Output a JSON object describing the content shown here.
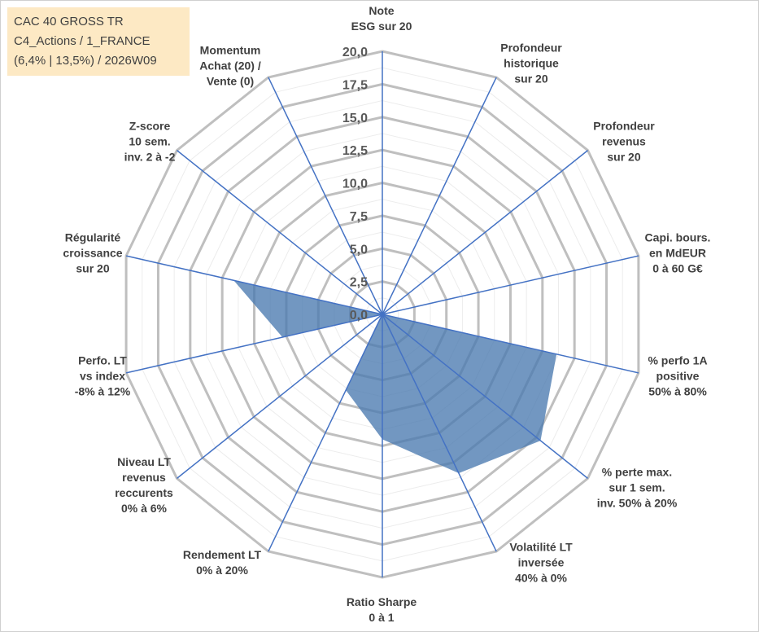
{
  "chart_data": {
    "type": "radar",
    "title_lines": [
      "CAC 40 GROSS TR",
      "C4_Actions / 1_FRANCE",
      "(6,4% | 13,5%) / 2026W09"
    ],
    "rlim": [
      0,
      20
    ],
    "ticks": [
      "0,0",
      "2,5",
      "5,0",
      "7,5",
      "10,0",
      "12,5",
      "15,0",
      "17,5",
      "20,0"
    ],
    "grid": true,
    "categories": [
      "Note\nESG sur 20",
      "Profondeur\nhistorique\nsur 20",
      "Profondeur\nrevenus\nsur 20",
      "Capi. bours.\nen MdEUR\n0 à 60 G€",
      "% perfo 1A\npositive\n50% à 80%",
      "% perte max.\nsur 1 sem.\ninv. 50% à 20%",
      "Volatilité LT\ninversée\n40% à 0%",
      "Ratio Sharpe\n0 à 1",
      "Rendement LT\n0% à 20%",
      "Niveau LT\nrevenus\nreccurents\n0% à 6%",
      "Perfo. LT\nvs index\n-8% à 12%",
      "Régularité\ncroissance\nsur 20",
      "Z-score\n10 sem.\ninv. 2 à -2",
      "Momentum\nAchat (20) /\nVente (0)"
    ],
    "values": [
      0,
      0,
      0,
      0,
      13.6,
      15.4,
      13.4,
      9.5,
      6.4,
      0,
      7.8,
      11.6,
      0,
      0
    ],
    "colors": {
      "fill": "#4a7ab0",
      "axis": "#4472c4",
      "ring": "#bfbfbf",
      "title_bg": "#fde9c4"
    }
  }
}
